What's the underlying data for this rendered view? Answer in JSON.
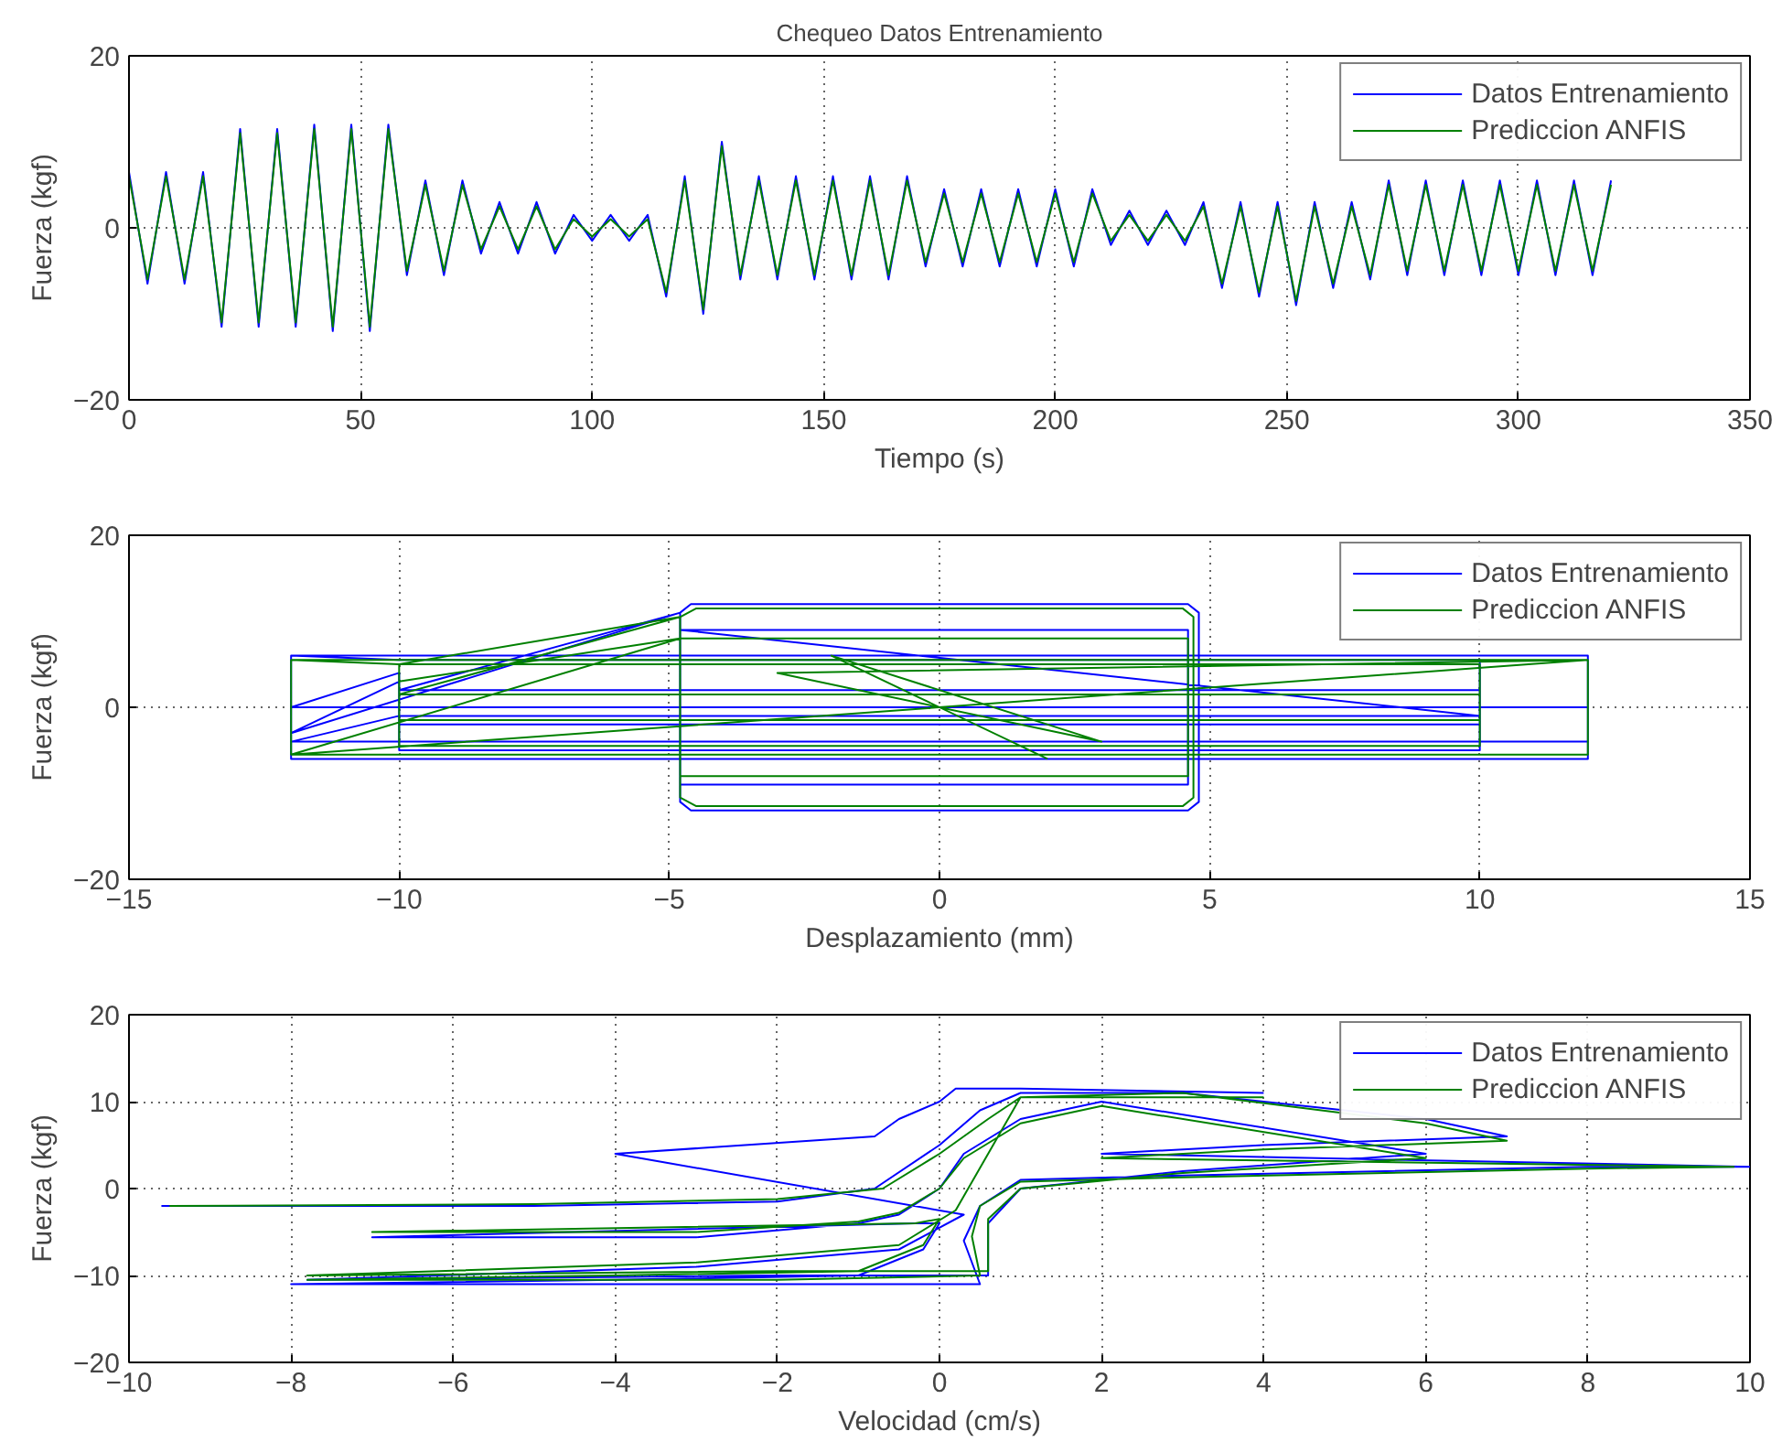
{
  "chart_data": [
    {
      "type": "line",
      "title": "Chequeo Datos Entrenamiento",
      "xlabel": "Tiempo (s)",
      "ylabel": "Fuerza (kgf)",
      "xlim": [
        0,
        350
      ],
      "ylim": [
        -20,
        20
      ],
      "xticks": [
        0,
        50,
        100,
        150,
        200,
        250,
        300,
        350
      ],
      "yticks": [
        -20,
        0,
        20
      ],
      "grid": true,
      "legend": "top right",
      "line_style": "solid",
      "marker": "none",
      "series": [
        {
          "name": "Datos Entrenamiento",
          "color": "#0000ff",
          "x": [
            0,
            4,
            8,
            12,
            16,
            20,
            24,
            28,
            32,
            36,
            40,
            44,
            48,
            52,
            56,
            60,
            64,
            68,
            72,
            76,
            80,
            84,
            88,
            92,
            96,
            100,
            104,
            108,
            112,
            116,
            120,
            124,
            128,
            132,
            136,
            140,
            144,
            148,
            152,
            156,
            160,
            164,
            168,
            172,
            176,
            180,
            184,
            188,
            192,
            196,
            200,
            204,
            208,
            212,
            216,
            220,
            224,
            228,
            232,
            236,
            240,
            244,
            248,
            252,
            256,
            260,
            264,
            268,
            272,
            276,
            280,
            284,
            288,
            292,
            296,
            300,
            304,
            308,
            312,
            316,
            320
          ],
          "values": [
            6.5,
            -6.5,
            6.5,
            -6.5,
            6.5,
            -11.5,
            11.5,
            -11.5,
            11.5,
            -11.5,
            12,
            -12,
            12,
            -12,
            12,
            -5.5,
            5.5,
            -5.5,
            5.5,
            -3,
            3,
            -3,
            3,
            -3,
            1.5,
            -1.5,
            1.5,
            -1.5,
            1.5,
            -8,
            6,
            -10,
            10,
            -6,
            6,
            -6,
            6,
            -6,
            6,
            -6,
            6,
            -6,
            6,
            -4.5,
            4.5,
            -4.5,
            4.5,
            -4.5,
            4.5,
            -4.5,
            4.5,
            -4.5,
            4.5,
            -2,
            2,
            -2,
            2,
            -2,
            3,
            -7,
            3,
            -8,
            3,
            -9,
            3,
            -7,
            3,
            -6,
            5.5,
            -5.5,
            5.5,
            -5.5,
            5.5,
            -5.5,
            5.5,
            -5.5,
            5.5,
            -5.5,
            5.5,
            -5.5,
            5.5
          ]
        },
        {
          "name": "Prediccion ANFIS",
          "color": "#008000",
          "x": [
            0,
            4,
            8,
            12,
            16,
            20,
            24,
            28,
            32,
            36,
            40,
            44,
            48,
            52,
            56,
            60,
            64,
            68,
            72,
            76,
            80,
            84,
            88,
            92,
            96,
            100,
            104,
            108,
            112,
            116,
            120,
            124,
            128,
            132,
            136,
            140,
            144,
            148,
            152,
            156,
            160,
            164,
            168,
            172,
            176,
            180,
            184,
            188,
            192,
            196,
            200,
            204,
            208,
            212,
            216,
            220,
            224,
            228,
            232,
            236,
            240,
            244,
            248,
            252,
            256,
            260,
            264,
            268,
            272,
            276,
            280,
            284,
            288,
            292,
            296,
            300,
            304,
            308,
            312,
            316,
            320
          ],
          "values": [
            6,
            -6,
            6,
            -6,
            6,
            -11,
            11,
            -11,
            11,
            -11,
            11.5,
            -11.5,
            11.5,
            -11.5,
            11.5,
            -5,
            5,
            -5,
            5,
            -2.5,
            2.5,
            -2.5,
            2.5,
            -2.5,
            1,
            -1,
            1,
            -1,
            1,
            -7.5,
            5.5,
            -9.5,
            9.5,
            -5.5,
            5.5,
            -5.5,
            5.5,
            -5.5,
            5.5,
            -5.5,
            5.5,
            -5.5,
            5.5,
            -4,
            4,
            -4,
            4,
            -4,
            4,
            -4,
            4,
            -4,
            4,
            -1.5,
            1.5,
            -1.5,
            1.5,
            -1.5,
            2.5,
            -6.5,
            2.5,
            -7.5,
            2.5,
            -8.5,
            2.5,
            -6.5,
            2.5,
            -5.5,
            5,
            -5,
            5,
            -5,
            5,
            -5,
            5,
            -5,
            5,
            -5,
            5,
            -5,
            5
          ]
        }
      ]
    },
    {
      "type": "line",
      "xlabel": "Desplazamiento (mm)",
      "ylabel": "Fuerza (kgf)",
      "xlim": [
        -15,
        15
      ],
      "ylim": [
        -20,
        20
      ],
      "xticks": [
        -15,
        -10,
        -5,
        0,
        5,
        10,
        15
      ],
      "yticks": [
        -20,
        0,
        20
      ],
      "grid": true,
      "legend": "top right",
      "line_style": "solid",
      "marker": "none",
      "series": [
        {
          "name": "Datos Entrenamiento",
          "color": "#0000ff",
          "x": [
            -12,
            12,
            12,
            -12,
            -12,
            -10,
            10,
            10,
            -10,
            -10,
            -12,
            -4.8,
            -4.6,
            4.6,
            4.8,
            4.8,
            4.6,
            -4.6,
            -4.8,
            -4.8,
            -10,
            10,
            10,
            -10,
            -10,
            -12,
            12,
            12,
            -12,
            -10,
            10,
            -4.8,
            4.6,
            4.6,
            -4.8,
            -4.8
          ],
          "values": [
            6,
            6,
            -6,
            -6,
            6,
            5.5,
            5.5,
            -5,
            -5,
            3,
            -3,
            11,
            12,
            12,
            11,
            -11,
            -12,
            -12,
            -11,
            11,
            2,
            2,
            -2,
            -2,
            4,
            0,
            0,
            -4,
            -4,
            -1,
            -1,
            9,
            9,
            -9,
            -9,
            9
          ]
        },
        {
          "name": "Prediccion ANFIS",
          "color": "#008000",
          "x": [
            -12,
            12,
            12,
            -12,
            -12,
            -10,
            10,
            10,
            -10,
            -10,
            -4.8,
            -4.5,
            4.5,
            4.7,
            4.7,
            4.5,
            -4.5,
            -4.8,
            -4.8,
            -10,
            10,
            10,
            -10,
            -10,
            -4.8,
            4.6,
            4.6,
            -4.8,
            -4.8,
            -12,
            12,
            -3,
            3,
            -2,
            2
          ],
          "values": [
            5.5,
            5.5,
            -5.5,
            -5.5,
            5.5,
            5,
            5,
            -4.5,
            -4.5,
            5,
            10.5,
            11.5,
            11.5,
            10.5,
            -10.5,
            -11.5,
            -11.5,
            -10.5,
            10.5,
            1.5,
            1.5,
            -1.5,
            -1.5,
            3,
            8,
            8,
            -8,
            -8,
            8,
            -5.5,
            5.5,
            4,
            -4,
            6,
            -6
          ]
        }
      ]
    },
    {
      "type": "line",
      "xlabel": "Velocidad (cm/s)",
      "ylabel": "Fuerza (kgf)",
      "xlim": [
        -10,
        10
      ],
      "ylim": [
        -20,
        20
      ],
      "xticks": [
        -10,
        -8,
        -6,
        -4,
        -2,
        0,
        2,
        4,
        6,
        8,
        10
      ],
      "yticks": [
        -20,
        -10,
        0,
        10,
        20
      ],
      "grid": true,
      "legend": "top right",
      "line_style": "solid",
      "marker": "none",
      "series": [
        {
          "name": "Datos Entrenamiento",
          "color": "#0000ff",
          "x": [
            -9.6,
            -5,
            -2,
            -0.8,
            0,
            0.5,
            1,
            3,
            6,
            7,
            4,
            2,
            10,
            8,
            3,
            1,
            0.5,
            0.3,
            0.5,
            -2,
            -8,
            -4,
            -1,
            -0.2,
            0,
            -0.3,
            -7,
            -3,
            -1,
            -0.5,
            0,
            0.3,
            1,
            2,
            6,
            3,
            1,
            0.6,
            0.6,
            -2,
            -7.8,
            -3,
            -0.5,
            0.3,
            -4,
            -0.8,
            -0.5,
            0,
            0.2,
            1,
            4
          ],
          "values": [
            -2,
            -2,
            -1.5,
            0,
            5,
            9,
            11,
            11,
            8,
            6,
            5,
            4,
            2.5,
            2.5,
            1.5,
            1,
            -2,
            -6,
            -11,
            -11,
            -11,
            -10.5,
            -10,
            -7,
            -4,
            -4,
            -5.6,
            -5.6,
            -4,
            -3,
            0,
            4,
            8,
            10,
            4,
            2,
            0,
            -4,
            -10,
            -10,
            -10.5,
            -9,
            -7,
            -3,
            4,
            6,
            8,
            10,
            11.5,
            11.5,
            11
          ]
        },
        {
          "name": "Prediccion ANFIS",
          "color": "#008000",
          "x": [
            -9.5,
            -5,
            -2,
            -0.7,
            0,
            0.6,
            1,
            3,
            6,
            7,
            4,
            2,
            9.8,
            8,
            3,
            1,
            0.5,
            0.4,
            0.5,
            -2,
            -7.8,
            -4,
            -1,
            -0.2,
            0,
            -0.3,
            -7,
            -3,
            -1,
            -0.5,
            0,
            0.3,
            1,
            2,
            6,
            3,
            1,
            0.6,
            0.6,
            -2,
            -7.8,
            -3,
            -0.5,
            0.2,
            1,
            4
          ],
          "values": [
            -2,
            -1.8,
            -1.2,
            0,
            4,
            8,
            10.5,
            11,
            7.5,
            5.5,
            4.5,
            3.5,
            2.5,
            2.3,
            1.3,
            0.8,
            -2,
            -5.5,
            -10,
            -10.5,
            -10.5,
            -10,
            -9.5,
            -6.5,
            -3.5,
            -4,
            -5,
            -5,
            -3.8,
            -2.8,
            0,
            3.5,
            7.5,
            9.5,
            3.5,
            1.8,
            0,
            -3.5,
            -9.5,
            -9.5,
            -10,
            -8.5,
            -6.5,
            -2.5,
            10.5,
            10.5
          ]
        }
      ]
    }
  ]
}
